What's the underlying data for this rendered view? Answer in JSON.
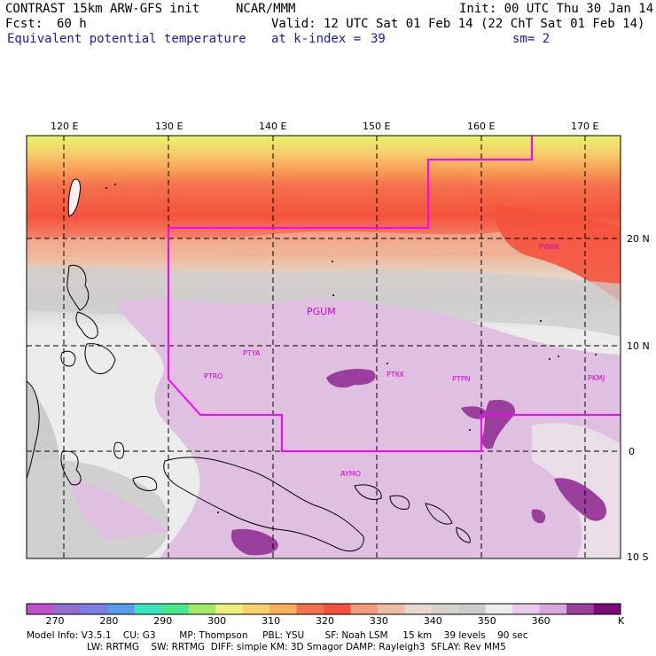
{
  "header": {
    "model": "CONTRAST 15km ARW-GFS init",
    "org": "NCAR/MMM",
    "init": "Init: 00 UTC Thu 30 Jan 14",
    "fcst_label": "Fcst:",
    "fcst_value": "60 h",
    "valid": "Valid: 12 UTC Sat 01 Feb 14 (22 ChT Sat 01 Feb 14)",
    "field": "Equivalent potential temperature",
    "level": "at k-index =",
    "level_value": "39",
    "sm": "sm= 2"
  },
  "map": {
    "lon_labels": [
      "120 E",
      "130 E",
      "140 E",
      "150 E",
      "160 E",
      "170 E"
    ],
    "lat_labels": [
      "20 N",
      "10 N",
      "0",
      "10 S"
    ],
    "stations": [
      "PGUM",
      "PTYA",
      "PTRO",
      "PTKK",
      "PTPN",
      "PKMJ",
      "PWAK",
      "AYMO"
    ]
  },
  "colorbar": {
    "labels": [
      "270",
      "280",
      "290",
      "300",
      "310",
      "320",
      "330",
      "340",
      "350",
      "360"
    ],
    "unit": "K",
    "colors": [
      "#c050d0",
      "#9070d0",
      "#7d7de6",
      "#5a9cec",
      "#3ee4c0",
      "#48e88c",
      "#a2ea66",
      "#ecf078",
      "#f7d26c",
      "#f9ae5c",
      "#f2724c",
      "#f4523c",
      "#f39a7c",
      "#eebca2",
      "#e6d8cc",
      "#d8d2cc",
      "#cccccc",
      "#ececec",
      "#e8c8e8",
      "#d8a8dc",
      "#9b3f9d",
      "#7b0b7b"
    ]
  },
  "footer": {
    "line1": "Model Info: V3.5.1    CU: G3        MP: Thompson     PBL: YSU       SF: Noah LSM     15 km    39 levels    90 sec",
    "line2": "LW: RRTMG    SW: RRTMG  DIFF: simple KM: 3D Smagor DAMP: Rayleigh3  SFLAY: Rev MM5"
  }
}
